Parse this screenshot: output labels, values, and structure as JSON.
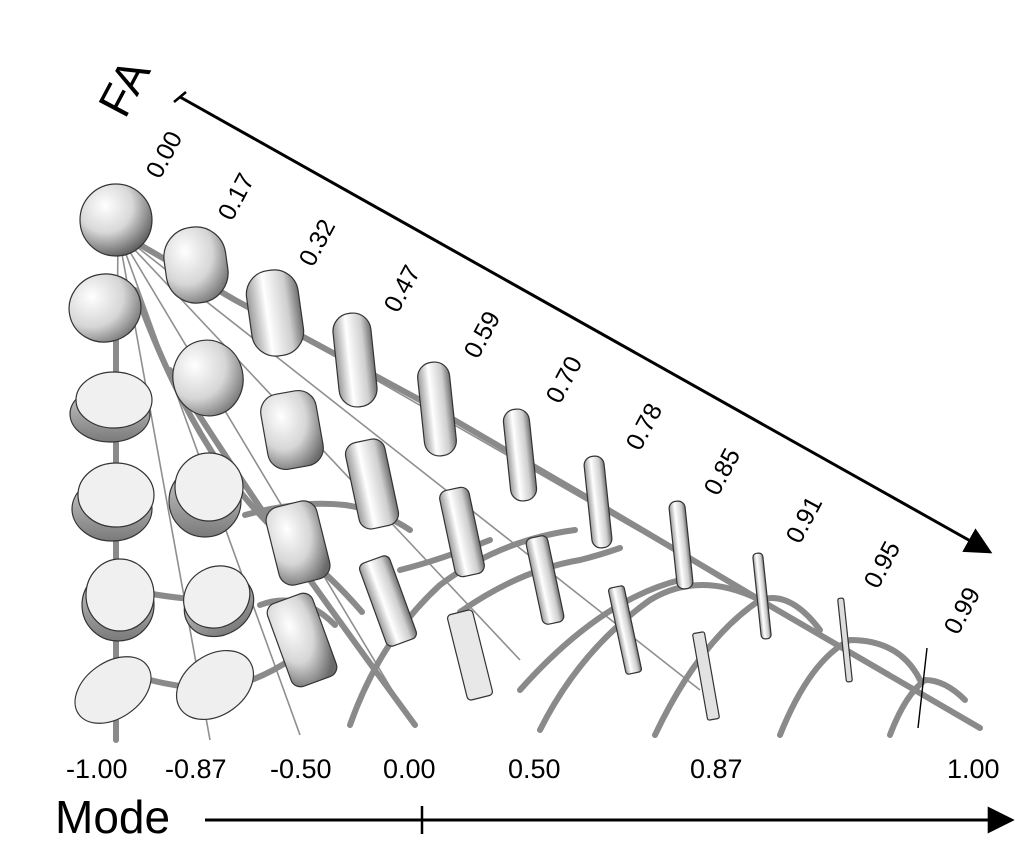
{
  "fa_axis": {
    "title": "FA",
    "labels": [
      "0.00",
      "0.17",
      "0.32",
      "0.47",
      "0.59",
      "0.70",
      "0.78",
      "0.85",
      "0.91",
      "0.95",
      "0.99"
    ]
  },
  "mode_axis": {
    "title": "Mode",
    "labels": [
      "-1.00",
      "-0.87",
      "-0.50",
      "0.00",
      "0.50",
      "0.87",
      "1.00"
    ]
  },
  "colors": {
    "grid_thick": "#8a8a8a",
    "grid_thin": "#8a8a8a",
    "glyph_light": "#f2f2f2",
    "glyph_dark": "#555555",
    "axis": "#000000"
  }
}
